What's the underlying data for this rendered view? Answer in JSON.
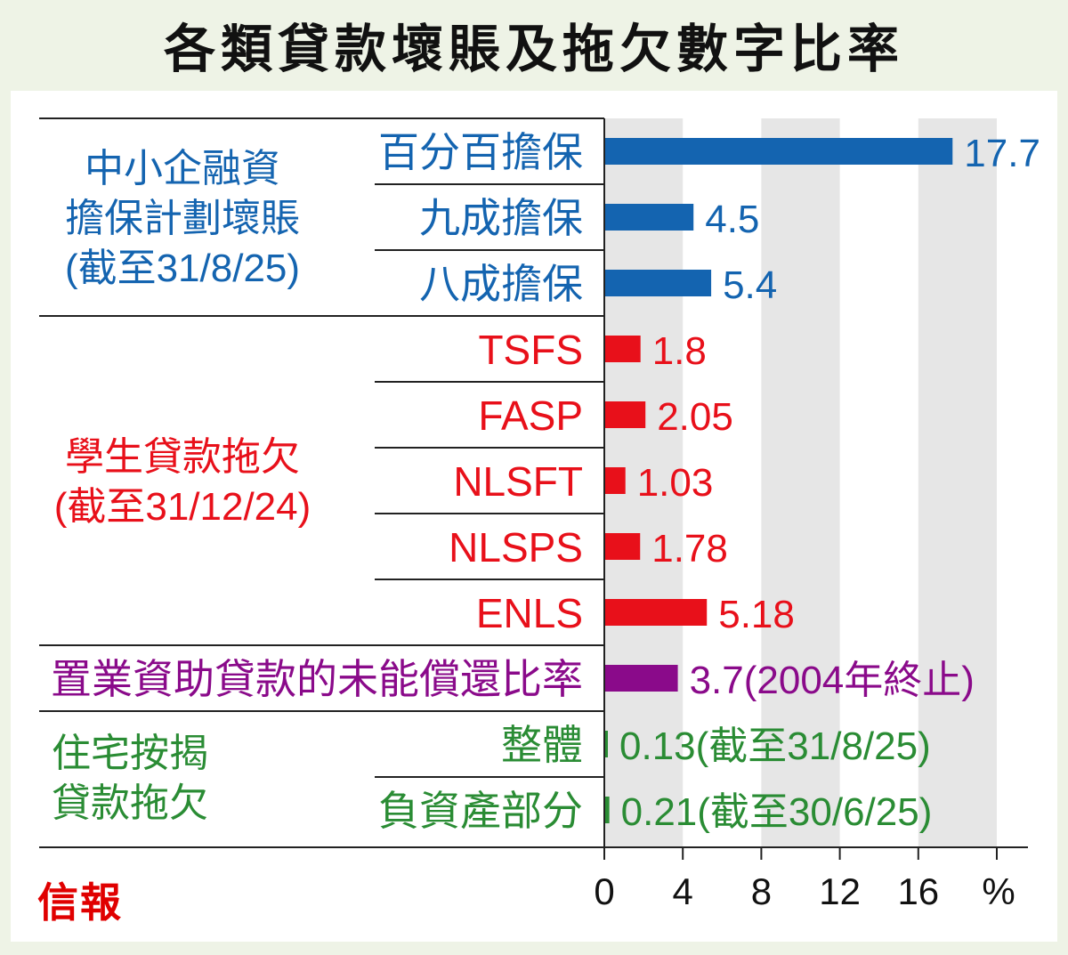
{
  "title": "各類貸款壞賬及拖欠數字比率",
  "logo": "信報",
  "colors": {
    "sme": "#1464b0",
    "student": "#e8101a",
    "home": "#8a0a8a",
    "mortgage": "#2a8c34"
  },
  "chart_data": {
    "type": "bar",
    "orientation": "horizontal",
    "xlim": [
      0,
      20
    ],
    "xticks": [
      "0",
      "4",
      "8",
      "12",
      "16"
    ],
    "xticks_values": [
      0,
      4,
      8,
      12,
      16
    ],
    "x_unit": "%",
    "grid": "alternating vertical bands",
    "groups": [
      {
        "key": "sme",
        "label_lines": [
          "中小企融資",
          "擔保計劃壞賬",
          "(截至31/8/25)"
        ],
        "color": "#1464b0",
        "items": [
          {
            "label": "百分百擔保",
            "value": 17.7,
            "value_label": "17.7"
          },
          {
            "label": "九成擔保",
            "value": 4.5,
            "value_label": "4.5"
          },
          {
            "label": "八成擔保",
            "value": 5.4,
            "value_label": "5.4"
          }
        ]
      },
      {
        "key": "student",
        "label_lines": [
          "學生貸款拖欠",
          "(截至31/12/24)"
        ],
        "color": "#e8101a",
        "items": [
          {
            "label": "TSFS",
            "value": 1.8,
            "value_label": "1.8"
          },
          {
            "label": "FASP",
            "value": 2.05,
            "value_label": "2.05"
          },
          {
            "label": "NLSFT",
            "value": 1.03,
            "value_label": "1.03"
          },
          {
            "label": "NLSPS",
            "value": 1.78,
            "value_label": "1.78"
          },
          {
            "label": "ENLS",
            "value": 5.18,
            "value_label": "5.18"
          }
        ]
      },
      {
        "key": "home",
        "label_lines": [],
        "color": "#8a0a8a",
        "items": [
          {
            "label": "置業資助貸款的未能償還比率",
            "value": 3.7,
            "value_label": "3.7(2004年終止)"
          }
        ]
      },
      {
        "key": "mortgage",
        "label_lines": [
          "住宅按揭",
          "貸款拖欠"
        ],
        "color": "#2a8c34",
        "items": [
          {
            "label": "整體",
            "value": 0.13,
            "value_label": "0.13(截至31/8/25)"
          },
          {
            "label": "負資產部分",
            "value": 0.21,
            "value_label": "0.21(截至30/6/25)"
          }
        ]
      }
    ]
  }
}
